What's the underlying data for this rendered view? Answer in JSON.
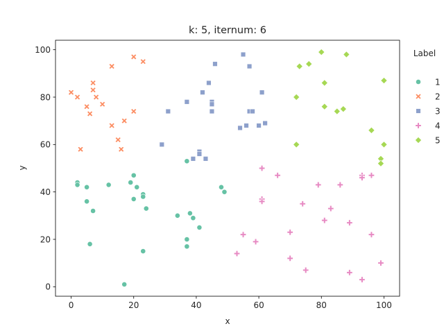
{
  "chart_data": {
    "type": "scatter",
    "title": "k: 5, iternum: 6",
    "xlabel": "x",
    "ylabel": "y",
    "xlim": [
      -5,
      105
    ],
    "ylim": [
      -4,
      104
    ],
    "xticks": [
      0,
      20,
      40,
      60,
      80,
      100
    ],
    "yticks": [
      0,
      20,
      40,
      60,
      80,
      100
    ],
    "grid": false,
    "legend": {
      "title": "Label",
      "placement": "outside-right",
      "entries": [
        {
          "label": "1",
          "marker": "circle",
          "color": "#66c2a5"
        },
        {
          "label": "2",
          "marker": "x",
          "color": "#fc8d62"
        },
        {
          "label": "3",
          "marker": "square",
          "color": "#8da0cb"
        },
        {
          "label": "4",
          "marker": "plus",
          "color": "#e78ac3"
        },
        {
          "label": "5",
          "marker": "diamond",
          "color": "#a6d854"
        }
      ]
    },
    "series": [
      {
        "name": "1",
        "marker": "circle",
        "color": "#66c2a5",
        "points": [
          [
            2,
            44
          ],
          [
            2,
            43
          ],
          [
            5,
            42
          ],
          [
            5,
            36
          ],
          [
            7,
            32
          ],
          [
            6,
            18
          ],
          [
            12,
            43
          ],
          [
            17,
            1
          ],
          [
            19,
            44
          ],
          [
            20,
            47
          ],
          [
            20,
            37
          ],
          [
            21,
            42
          ],
          [
            23,
            39
          ],
          [
            23,
            38
          ],
          [
            24,
            33
          ],
          [
            23,
            15
          ],
          [
            34,
            30
          ],
          [
            37,
            53
          ],
          [
            37,
            20
          ],
          [
            37,
            17
          ],
          [
            38,
            31
          ],
          [
            39,
            29
          ],
          [
            41,
            25
          ],
          [
            48,
            42
          ],
          [
            49,
            40
          ]
        ]
      },
      {
        "name": "2",
        "marker": "x",
        "color": "#fc8d62",
        "points": [
          [
            0,
            82
          ],
          [
            2,
            80
          ],
          [
            3,
            58
          ],
          [
            5,
            76
          ],
          [
            6,
            73
          ],
          [
            7,
            86
          ],
          [
            7,
            83
          ],
          [
            8,
            80
          ],
          [
            10,
            77
          ],
          [
            13,
            93
          ],
          [
            13,
            68
          ],
          [
            15,
            62
          ],
          [
            16,
            58
          ],
          [
            17,
            70
          ],
          [
            20,
            97
          ],
          [
            20,
            74
          ],
          [
            23,
            95
          ]
        ]
      },
      {
        "name": "3",
        "marker": "square",
        "color": "#8da0cb",
        "points": [
          [
            29,
            60
          ],
          [
            31,
            74
          ],
          [
            37,
            78
          ],
          [
            39,
            54
          ],
          [
            41,
            57
          ],
          [
            41,
            56
          ],
          [
            42,
            82
          ],
          [
            43,
            54
          ],
          [
            44,
            86
          ],
          [
            45,
            78
          ],
          [
            45,
            77
          ],
          [
            45,
            74
          ],
          [
            46,
            94
          ],
          [
            54,
            67
          ],
          [
            55,
            98
          ],
          [
            56,
            68
          ],
          [
            57,
            93
          ],
          [
            57,
            74
          ],
          [
            58,
            74
          ],
          [
            60,
            68
          ],
          [
            61,
            82
          ],
          [
            62,
            69
          ]
        ]
      },
      {
        "name": "4",
        "marker": "plus",
        "color": "#e78ac3",
        "points": [
          [
            53,
            14
          ],
          [
            55,
            22
          ],
          [
            59,
            19
          ],
          [
            61,
            50
          ],
          [
            61,
            37
          ],
          [
            61,
            36
          ],
          [
            66,
            47
          ],
          [
            70,
            23
          ],
          [
            70,
            12
          ],
          [
            74,
            35
          ],
          [
            75,
            7
          ],
          [
            79,
            43
          ],
          [
            81,
            28
          ],
          [
            83,
            33
          ],
          [
            86,
            43
          ],
          [
            89,
            27
          ],
          [
            89,
            6
          ],
          [
            93,
            47
          ],
          [
            93,
            46
          ],
          [
            93,
            3
          ],
          [
            96,
            47
          ],
          [
            96,
            22
          ],
          [
            99,
            10
          ]
        ]
      },
      {
        "name": "5",
        "marker": "diamond",
        "color": "#a6d854",
        "points": [
          [
            72,
            80
          ],
          [
            72,
            60
          ],
          [
            73,
            93
          ],
          [
            76,
            94
          ],
          [
            80,
            99
          ],
          [
            81,
            86
          ],
          [
            81,
            76
          ],
          [
            85,
            74
          ],
          [
            87,
            75
          ],
          [
            88,
            98
          ],
          [
            96,
            66
          ],
          [
            99,
            54
          ],
          [
            99,
            52
          ],
          [
            100,
            87
          ],
          [
            100,
            60
          ]
        ]
      }
    ]
  }
}
